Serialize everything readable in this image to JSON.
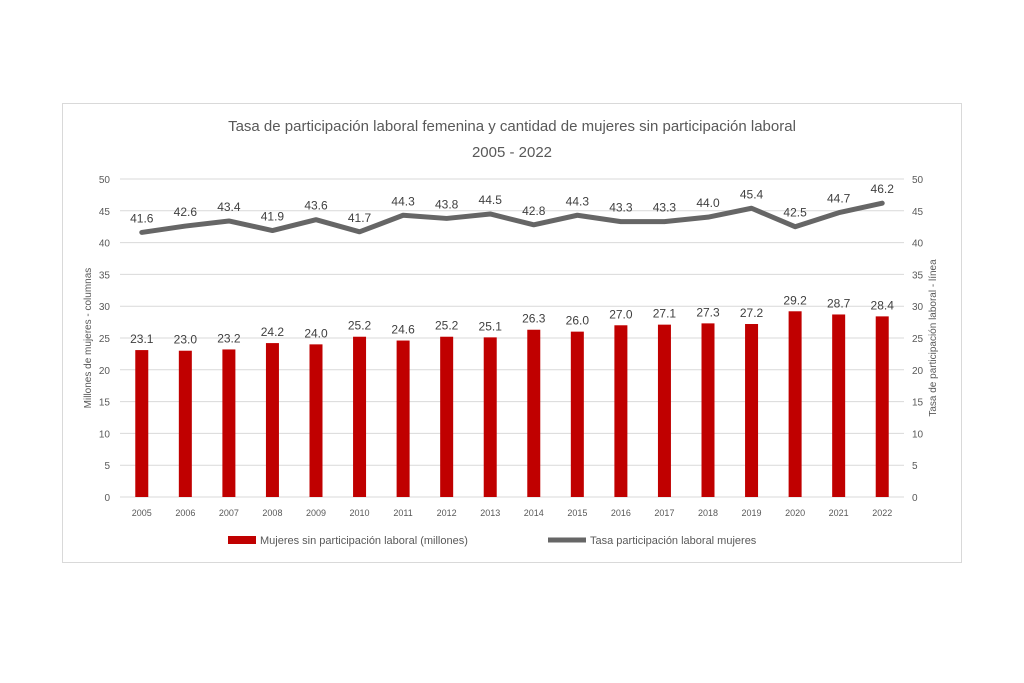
{
  "chart_data": {
    "type": "bar",
    "title": "Tasa de participación laboral femenina y cantidad de mujeres sin participación laboral",
    "subtitle": "2005 - 2022",
    "ylabel_left": "Millones de mujeres - columnas",
    "ylabel_right": "Tasa de participación laboral - línea",
    "ylim_left": [
      0,
      50
    ],
    "ylim_right": [
      0,
      50
    ],
    "yticks": [
      "0",
      "5",
      "10",
      "15",
      "20",
      "25",
      "30",
      "35",
      "40",
      "45",
      "50"
    ],
    "grid": true,
    "legend_position": "bottom",
    "categories": [
      "2005",
      "2006",
      "2007",
      "2008",
      "2009",
      "2010",
      "2011",
      "2012",
      "2013",
      "2014",
      "2015",
      "2016",
      "2017",
      "2018",
      "2019",
      "2020",
      "2021",
      "2022"
    ],
    "series": [
      {
        "name": "Mujeres sin participación laboral (millones)",
        "type": "bar",
        "axis": "left",
        "color": "#c00000",
        "values": [
          23.1,
          23.0,
          23.2,
          24.2,
          24.0,
          25.2,
          24.6,
          25.2,
          25.1,
          26.3,
          26.0,
          27.0,
          27.1,
          27.3,
          27.2,
          29.2,
          28.7,
          28.4
        ],
        "labels": [
          "23.1",
          "23.0",
          "23.2",
          "24.2",
          "24.0",
          "25.2",
          "24.6",
          "25.2",
          "25.1",
          "26.3",
          "26.0",
          "27.0",
          "27.1",
          "27.3",
          "27.2",
          "29.2",
          "28.7",
          "28.4"
        ]
      },
      {
        "name": "Tasa participación laboral mujeres",
        "type": "line",
        "axis": "right",
        "color": "#666666",
        "values": [
          41.6,
          42.6,
          43.4,
          41.9,
          43.6,
          41.7,
          44.3,
          43.8,
          44.5,
          42.8,
          44.3,
          43.3,
          43.3,
          44.0,
          45.4,
          42.5,
          44.7,
          46.2
        ],
        "labels": [
          "41.6",
          "42.6",
          "43.4",
          "41.9",
          "43.6",
          "41.7",
          "44.3",
          "43.8",
          "44.5",
          "42.8",
          "44.3",
          "43.3",
          "43.3",
          "44.0",
          "45.4",
          "42.5",
          "44.7",
          "46.2"
        ]
      }
    ]
  }
}
